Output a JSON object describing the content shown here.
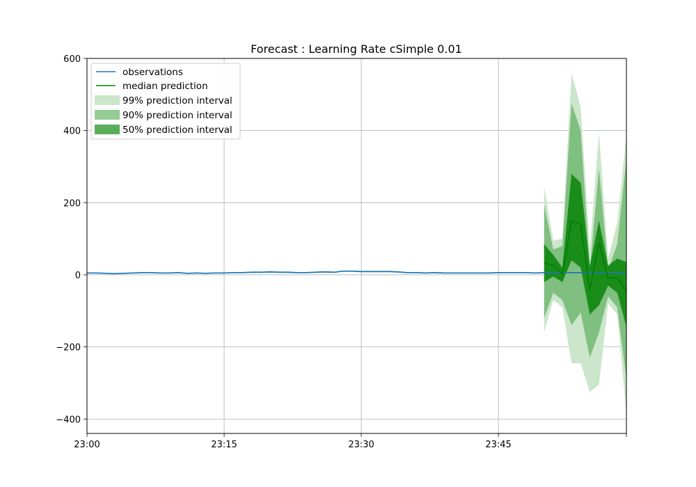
{
  "chart_data": {
    "type": "line",
    "title": "Forecast : Learning Rate cSimple 0.01",
    "xlabel": "",
    "ylabel": "",
    "x_time_range": [
      "23:00",
      "23:59"
    ],
    "ylim": [
      -440,
      600
    ],
    "grid": true,
    "legend_position": "top-left",
    "x_ticks": [
      {
        "t": "23:00",
        "label": "23:00"
      },
      {
        "t": "23:15",
        "label": "23:15"
      },
      {
        "t": "23:30",
        "label": "23:30"
      },
      {
        "t": "23:45",
        "label": "23:45"
      }
    ],
    "y_ticks": [
      -400,
      -200,
      0,
      200,
      400,
      600
    ],
    "colors": {
      "observations": "#1f77b4",
      "median": "#008000",
      "band99": "#cbe6cb",
      "band90": "#7fbf7f",
      "band50": "#1a8c1a",
      "grid": "#b0b0b0"
    },
    "legend": [
      {
        "label": "observations",
        "kind": "line",
        "color": "#1f77b4"
      },
      {
        "label": "median prediction",
        "kind": "line",
        "color": "#008000"
      },
      {
        "label": "99% prediction interval",
        "kind": "patch",
        "color": "#cbe6cb"
      },
      {
        "label": "90% prediction interval",
        "kind": "patch",
        "color": "#94cc94"
      },
      {
        "label": "50% prediction interval",
        "kind": "patch",
        "color": "#5aae5a"
      }
    ],
    "series": [
      {
        "name": "observations",
        "x": [
          "23:00",
          "23:01",
          "23:02",
          "23:03",
          "23:04",
          "23:05",
          "23:06",
          "23:07",
          "23:08",
          "23:09",
          "23:10",
          "23:11",
          "23:12",
          "23:13",
          "23:14",
          "23:15",
          "23:16",
          "23:17",
          "23:18",
          "23:19",
          "23:20",
          "23:21",
          "23:22",
          "23:23",
          "23:24",
          "23:25",
          "23:26",
          "23:27",
          "23:28",
          "23:29",
          "23:30",
          "23:31",
          "23:32",
          "23:33",
          "23:34",
          "23:35",
          "23:36",
          "23:37",
          "23:38",
          "23:39",
          "23:40",
          "23:41",
          "23:42",
          "23:43",
          "23:44",
          "23:45",
          "23:46",
          "23:47",
          "23:48",
          "23:49",
          "23:50",
          "23:51",
          "23:52",
          "23:53",
          "23:54",
          "23:55",
          "23:56",
          "23:57",
          "23:58",
          "23:59"
        ],
        "y": [
          5,
          5,
          4,
          3,
          4,
          5,
          6,
          6,
          5,
          5,
          6,
          4,
          5,
          4,
          5,
          5,
          6,
          6,
          7,
          7,
          8,
          7,
          7,
          6,
          6,
          7,
          8,
          7,
          10,
          10,
          9,
          9,
          9,
          9,
          8,
          6,
          6,
          5,
          6,
          5,
          5,
          5,
          5,
          5,
          5,
          6,
          6,
          6,
          6,
          5,
          6,
          6,
          6,
          6,
          6,
          6,
          6,
          6,
          6,
          6
        ]
      },
      {
        "name": "median prediction",
        "x": [
          "23:50",
          "23:51",
          "23:52",
          "23:53",
          "23:54",
          "23:55",
          "23:56",
          "23:57",
          "23:58",
          "23:59"
        ],
        "y": [
          33,
          25,
          3,
          150,
          140,
          -42,
          90,
          -10,
          -8,
          -45
        ]
      }
    ],
    "intervals": {
      "x": [
        "23:50",
        "23:51",
        "23:52",
        "23:53",
        "23:54",
        "23:55",
        "23:56",
        "23:57",
        "23:58",
        "23:59"
      ],
      "p99": {
        "low": [
          -160,
          -70,
          -90,
          -245,
          -245,
          -325,
          -305,
          -80,
          -110,
          -385
        ],
        "high": [
          245,
          95,
          100,
          560,
          465,
          70,
          395,
          45,
          145,
          385
        ]
      },
      "p90": {
        "low": [
          -120,
          -50,
          -70,
          -140,
          -105,
          -230,
          -160,
          -60,
          -90,
          -290
        ],
        "high": [
          195,
          70,
          80,
          475,
          400,
          15,
          295,
          15,
          85,
          320
        ]
      },
      "p50": {
        "low": [
          -20,
          -5,
          -20,
          40,
          20,
          -110,
          -85,
          -30,
          -50,
          -145
        ],
        "high": [
          85,
          55,
          20,
          280,
          255,
          25,
          150,
          25,
          45,
          35
        ]
      }
    }
  }
}
